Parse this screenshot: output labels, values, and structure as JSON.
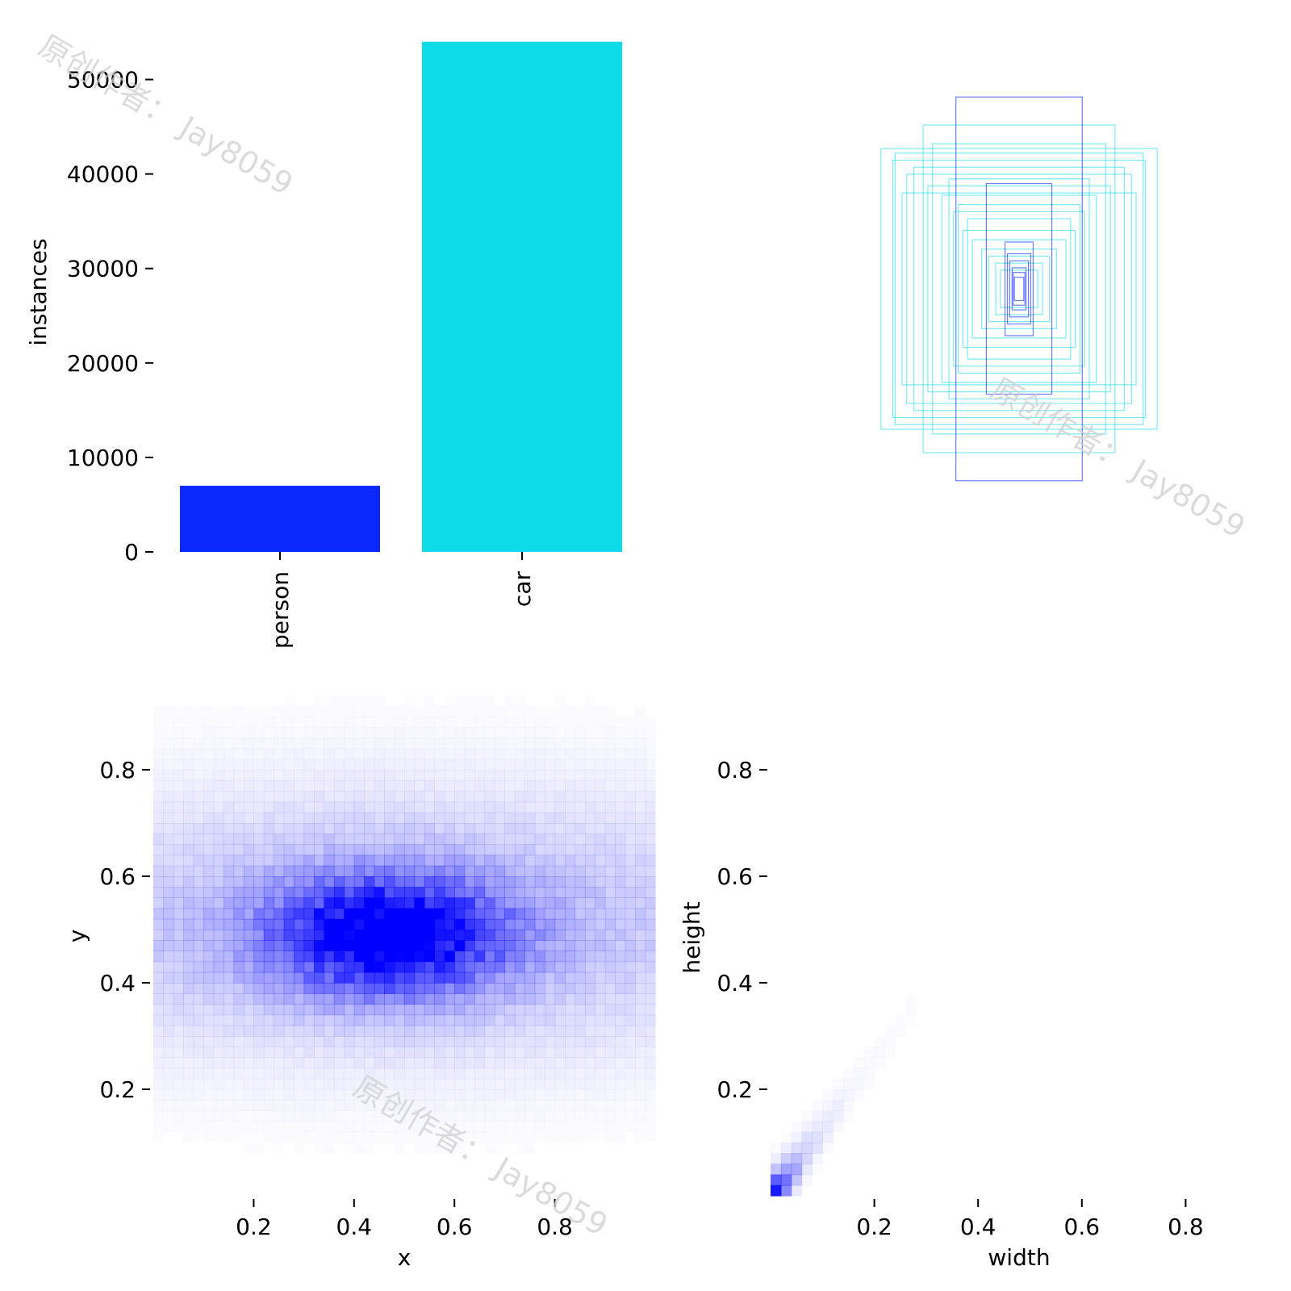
{
  "colors": {
    "person": "#0a28ff",
    "car": "#0edbe8",
    "heat": "#0000ff",
    "tick": "#000000"
  },
  "watermark": "原创作者： Jay8059",
  "chart_data": [
    {
      "id": "class-counts",
      "type": "bar",
      "ylabel": "instances",
      "categories": [
        "person",
        "car"
      ],
      "values": [
        7000,
        54000
      ],
      "ylim": [
        0,
        55000
      ],
      "yticks": [
        0,
        10000,
        20000,
        30000,
        40000,
        50000
      ],
      "ytick_labels": [
        "0",
        "10000",
        "20000",
        "30000",
        "40000",
        "50000"
      ],
      "grid": false
    },
    {
      "id": "box-shapes",
      "type": "scatter",
      "note_type": "overlaid label rectangles (normalized width x height, centered)",
      "boxes": [
        {
          "w": 0.48,
          "h": 0.49,
          "class": "car"
        },
        {
          "w": 0.54,
          "h": 0.55,
          "class": "car"
        },
        {
          "w": 0.59,
          "h": 0.6,
          "class": "car"
        },
        {
          "w": 0.41,
          "h": 0.7,
          "class": "car"
        },
        {
          "w": 0.53,
          "h": 0.58,
          "class": "car"
        },
        {
          "w": 0.37,
          "h": 0.62,
          "class": "car"
        },
        {
          "w": 0.5,
          "h": 0.41,
          "class": "car"
        },
        {
          "w": 0.45,
          "h": 0.52,
          "class": "car"
        },
        {
          "w": 0.33,
          "h": 0.4,
          "class": "car"
        },
        {
          "w": 0.28,
          "h": 0.33,
          "class": "car"
        },
        {
          "w": 0.24,
          "h": 0.25,
          "class": "car"
        },
        {
          "w": 0.2,
          "h": 0.21,
          "class": "car"
        },
        {
          "w": 0.16,
          "h": 0.17,
          "class": "car"
        },
        {
          "w": 0.13,
          "h": 0.14,
          "class": "car"
        },
        {
          "w": 0.1,
          "h": 0.11,
          "class": "car"
        },
        {
          "w": 0.08,
          "h": 0.08,
          "class": "car"
        },
        {
          "w": 0.3,
          "h": 0.47,
          "class": "car"
        },
        {
          "w": 0.22,
          "h": 0.3,
          "class": "car"
        },
        {
          "w": 0.26,
          "h": 0.36,
          "class": "car"
        },
        {
          "w": 0.39,
          "h": 0.44,
          "class": "car"
        },
        {
          "w": 0.27,
          "h": 0.82,
          "class": "person"
        },
        {
          "w": 0.14,
          "h": 0.45,
          "class": "person"
        },
        {
          "w": 0.06,
          "h": 0.2,
          "class": "person"
        },
        {
          "w": 0.05,
          "h": 0.15,
          "class": "person"
        },
        {
          "w": 0.04,
          "h": 0.12,
          "class": "person"
        },
        {
          "w": 0.03,
          "h": 0.09,
          "class": "person"
        },
        {
          "w": 0.025,
          "h": 0.07,
          "class": "person"
        },
        {
          "w": 0.02,
          "h": 0.05,
          "class": "person"
        }
      ]
    },
    {
      "id": "xy-density",
      "type": "heatmap",
      "xlabel": "x",
      "ylabel": "y",
      "xlim": [
        0,
        1
      ],
      "ylim": [
        0,
        1
      ],
      "xticks": [
        0.2,
        0.4,
        0.6,
        0.8
      ],
      "xtick_labels": [
        "0.2",
        "0.4",
        "0.6",
        "0.8"
      ],
      "yticks": [
        0.2,
        0.4,
        0.6,
        0.8
      ],
      "ytick_labels": [
        "0.2",
        "0.4",
        "0.6",
        "0.8"
      ],
      "bins": 50,
      "peak": {
        "x": 0.47,
        "y": 0.49
      },
      "spread": {
        "sx": 0.16,
        "sy": 0.075
      },
      "background_band": {
        "y_center": 0.51,
        "sy": 0.17,
        "weight": 0.28
      },
      "grid": false
    },
    {
      "id": "wh-density",
      "type": "heatmap",
      "xlabel": "width",
      "ylabel": "height",
      "xlim": [
        0,
        1
      ],
      "ylim": [
        0,
        1
      ],
      "xticks": [
        0.2,
        0.4,
        0.6,
        0.8
      ],
      "xtick_labels": [
        "0.2",
        "0.4",
        "0.6",
        "0.8"
      ],
      "yticks": [
        0.2,
        0.4,
        0.6,
        0.8
      ],
      "ytick_labels": [
        "0.2",
        "0.4",
        "0.6",
        "0.8"
      ],
      "bins": 50,
      "peak": {
        "x": 0.01,
        "y": 0.02
      },
      "diagonal_slope": 1.3,
      "grid": false
    }
  ]
}
